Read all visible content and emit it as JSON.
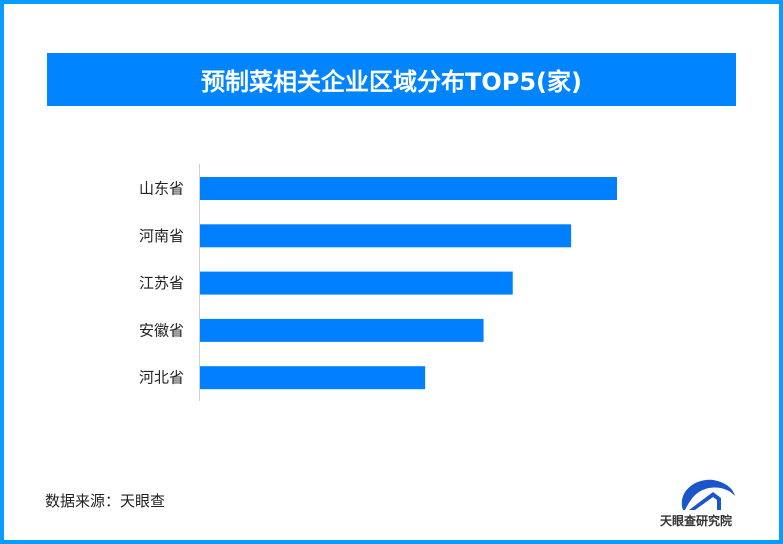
{
  "chart_data": {
    "type": "bar",
    "orientation": "horizontal",
    "title": "预制菜相关企业区域分布TOP5(家)",
    "categories": [
      "山东省",
      "河南省",
      "江苏省",
      "安徽省",
      "河北省"
    ],
    "values": [
      100,
      89,
      75,
      68,
      54
    ],
    "value_note_relative": true,
    "xlim": [
      0,
      100
    ],
    "grid": false,
    "bar_color": "#0080ff"
  },
  "footer": {
    "source": "数据来源：天眼查",
    "logo_text": "天眼查研究院"
  },
  "colors": {
    "border": "#0a9cff",
    "title_bg": "#0084ff"
  }
}
